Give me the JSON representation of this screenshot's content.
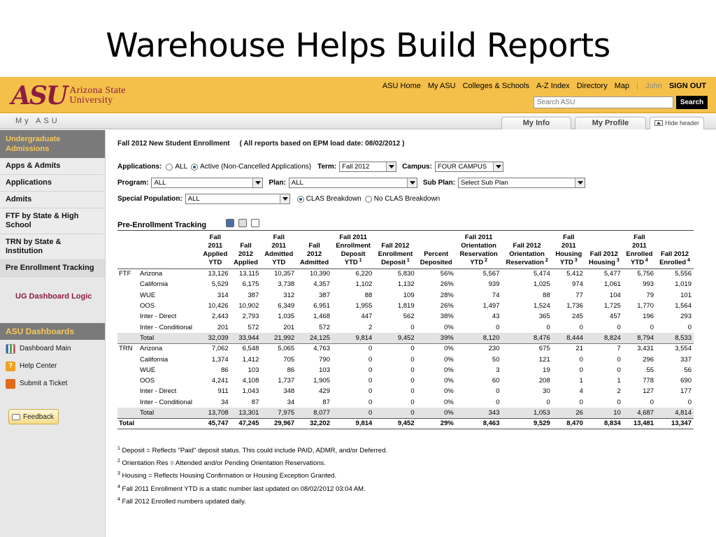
{
  "slide_title": "Warehouse Helps Build Reports",
  "brand": {
    "logo_mark": "ASU",
    "logo_line1": "Arizona State",
    "logo_line2": "University",
    "maroon": "#8c1d40",
    "gold": "#f5c04a"
  },
  "top_links": {
    "home": "ASU Home",
    "myasu": "My ASU",
    "colleges": "Colleges & Schools",
    "az": "A-Z Index",
    "directory": "Directory",
    "map": "Map",
    "separator": "|",
    "user": "John",
    "signout": "SIGN OUT"
  },
  "search": {
    "placeholder": "Search ASU",
    "value": "Search ASU",
    "button": "Search"
  },
  "myasu_bar": {
    "label": "My ASU",
    "tab_info": "My Info",
    "tab_profile": "My Profile",
    "hide_header": "Hide header"
  },
  "sidebar": {
    "heading": "Undergraduate Admissions",
    "items": [
      "Apps & Admits",
      "Applications",
      "Admits",
      "FTF by State & High School",
      "TRN by State & Institution",
      "Pre Enrollment Tracking"
    ],
    "dashboard_logic": "UG Dashboard Logic",
    "dashboards_heading": "ASU Dashboards",
    "links": [
      {
        "label": "Dashboard Main",
        "icon": "chart-icon"
      },
      {
        "label": "Help Center",
        "icon": "help-icon"
      },
      {
        "label": "Submit a Ticket",
        "icon": "ticket-icon"
      }
    ],
    "feedback": "Feedback"
  },
  "report": {
    "title": "Fall 2012 New Student Enrollment",
    "subtitle": "( All reports based on EPM load date: 08/02/2012 )",
    "filters": {
      "applications_label": "Applications:",
      "opt_all": "ALL",
      "opt_active": "Active (Non-Cancelled Applications)",
      "term_label": "Term:",
      "term_value": "Fall 2012",
      "campus_label": "Campus:",
      "campus_value": "FOUR CAMPUS",
      "program_label": "Program:",
      "program_value": "ALL",
      "plan_label": "Plan:",
      "plan_value": "ALL",
      "subplan_label": "Sub Plan:",
      "subplan_value": "Select Sub Plan",
      "special_label": "Special Population:",
      "special_value": "ALL",
      "clas_breakdown": "CLAS Breakdown",
      "no_clas_breakdown": "No CLAS Breakdown"
    },
    "tracking_title": "Pre-Enrollment Tracking",
    "columns": [
      {
        "l1": "Fall",
        "l2": "2011",
        "l3": "Applied",
        "l4": "YTD",
        "sup": ""
      },
      {
        "l1": "Fall",
        "l2": "2012",
        "l3": "Applied",
        "l4": "",
        "sup": ""
      },
      {
        "l1": "Fall",
        "l2": "2011",
        "l3": "Admitted",
        "l4": "YTD",
        "sup": ""
      },
      {
        "l1": "Fall",
        "l2": "2012",
        "l3": "Admitted",
        "l4": "",
        "sup": ""
      },
      {
        "l1": "Fall 2011",
        "l2": "Enrollment",
        "l3": "Deposit",
        "l4": "YTD",
        "sup": "1"
      },
      {
        "l1": "Fall 2012",
        "l2": "Enrollment",
        "l3": "Deposit",
        "l4": "",
        "sup": "1"
      },
      {
        "l1": "Percent",
        "l2": "Deposited",
        "l3": "",
        "l4": "",
        "sup": ""
      },
      {
        "l1": "Fall 2011",
        "l2": "Orientation",
        "l3": "Reservation",
        "l4": "YTD",
        "sup": "2"
      },
      {
        "l1": "Fall 2012",
        "l2": "Orientation",
        "l3": "Reservation",
        "l4": "",
        "sup": "2"
      },
      {
        "l1": "Fall",
        "l2": "2011",
        "l3": "Housing",
        "l4": "YTD",
        "sup": "3"
      },
      {
        "l1": "Fall 2012",
        "l2": "Housing",
        "l3": "",
        "l4": "",
        "sup": "3"
      },
      {
        "l1": "Fall",
        "l2": "2011",
        "l3": "Enrolled",
        "l4": "YTD",
        "sup": "4"
      },
      {
        "l1": "Fall 2012",
        "l2": "Enrolled",
        "l3": "",
        "l4": "",
        "sup": "4"
      }
    ],
    "rows": [
      {
        "group": "FTF",
        "label": "Arizona",
        "values": [
          "13,126",
          "13,115",
          "10,357",
          "10,390",
          "6,220",
          "5,830",
          "56%",
          "5,567",
          "5,474",
          "5,412",
          "5,477",
          "5,756",
          "5,556"
        ]
      },
      {
        "group": "",
        "label": "California",
        "values": [
          "5,529",
          "6,175",
          "3,738",
          "4,357",
          "1,102",
          "1,132",
          "26%",
          "939",
          "1,025",
          "974",
          "1,061",
          "993",
          "1,019"
        ]
      },
      {
        "group": "",
        "label": "WUE",
        "values": [
          "314",
          "387",
          "312",
          "387",
          "88",
          "109",
          "28%",
          "74",
          "88",
          "77",
          "104",
          "79",
          "101"
        ]
      },
      {
        "group": "",
        "label": "OOS",
        "values": [
          "10,426",
          "10,902",
          "6,349",
          "6,951",
          "1,955",
          "1,819",
          "26%",
          "1,497",
          "1,524",
          "1,736",
          "1,725",
          "1,770",
          "1,564"
        ]
      },
      {
        "group": "",
        "label": "Inter - Direct",
        "values": [
          "2,443",
          "2,793",
          "1,035",
          "1,468",
          "447",
          "562",
          "38%",
          "43",
          "365",
          "245",
          "457",
          "196",
          "293"
        ]
      },
      {
        "group": "",
        "label": "Inter - Conditional",
        "values": [
          "201",
          "572",
          "201",
          "572",
          "2",
          "0",
          "0%",
          "0",
          "0",
          "0",
          "0",
          "0",
          "0"
        ]
      },
      {
        "group": "",
        "label": "Total",
        "subtotal": true,
        "values": [
          "32,039",
          "33,944",
          "21,992",
          "24,125",
          "9,814",
          "9,452",
          "39%",
          "8,120",
          "8,476",
          "8,444",
          "8,824",
          "8,794",
          "8,533"
        ]
      },
      {
        "group": "TRN",
        "label": "Arizona",
        "values": [
          "7,062",
          "6,548",
          "5,065",
          "4,763",
          "0",
          "0",
          "0%",
          "230",
          "675",
          "21",
          "7",
          "3,431",
          "3,554"
        ]
      },
      {
        "group": "",
        "label": "California",
        "values": [
          "1,374",
          "1,412",
          "705",
          "790",
          "0",
          "0",
          "0%",
          "50",
          "121",
          "0",
          "0",
          "296",
          "337"
        ]
      },
      {
        "group": "",
        "label": "WUE",
        "values": [
          "86",
          "103",
          "86",
          "103",
          "0",
          "0",
          "0%",
          "3",
          "19",
          "0",
          "0",
          "55",
          "56"
        ]
      },
      {
        "group": "",
        "label": "OOS",
        "values": [
          "4,241",
          "4,108",
          "1,737",
          "1,905",
          "0",
          "0",
          "0%",
          "60",
          "208",
          "1",
          "1",
          "778",
          "690"
        ]
      },
      {
        "group": "",
        "label": "Inter - Direct",
        "values": [
          "911",
          "1,043",
          "348",
          "429",
          "0",
          "0",
          "0%",
          "0",
          "30",
          "4",
          "2",
          "127",
          "177"
        ]
      },
      {
        "group": "",
        "label": "Inter - Conditional",
        "values": [
          "34",
          "87",
          "34",
          "87",
          "0",
          "0",
          "0%",
          "0",
          "0",
          "0",
          "0",
          "0",
          "0"
        ]
      },
      {
        "group": "",
        "label": "Total",
        "subtotal": true,
        "values": [
          "13,708",
          "13,301",
          "7,975",
          "8,077",
          "0",
          "0",
          "0%",
          "343",
          "1,053",
          "26",
          "10",
          "4,687",
          "4,814"
        ]
      }
    ],
    "grand_total": {
      "label": "Total",
      "values": [
        "45,747",
        "47,245",
        "29,967",
        "32,202",
        "9,814",
        "9,452",
        "29%",
        "8,463",
        "9,529",
        "8,470",
        "8,834",
        "13,481",
        "13,347"
      ]
    },
    "footnotes": [
      {
        "num": "1",
        "text": "Deposit = Reflects \"Paid\" deposit status. This could include PAID, ADMR, and/or Deferred."
      },
      {
        "num": "2",
        "text": "Orientation Res = Attended and/or Pending Orientation Reservations."
      },
      {
        "num": "3",
        "text": "Housing = Reflects Housing Confirmation or Housing Exception Granted."
      },
      {
        "num": "4",
        "text": "Fall 2011 Enrollment YTD is a static number last updated on 08/02/2012 03:04 AM."
      },
      {
        "num": "4",
        "text": "Fall 2012 Enrolled numbers updated daily."
      }
    ]
  }
}
